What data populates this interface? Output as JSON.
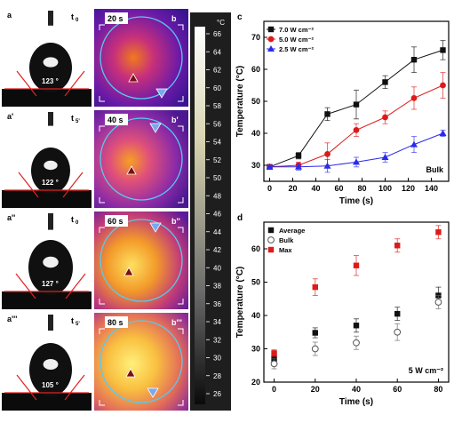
{
  "left_panels": [
    {
      "letter": "a",
      "time_label": "t",
      "time_sub": "0",
      "angle": "123 °",
      "ir_time": "20 s",
      "ir_letter": "b"
    },
    {
      "letter": "a'",
      "time_label": "t",
      "time_sub": "5'",
      "angle": "122 °",
      "ir_time": "40 s",
      "ir_letter": "b'"
    },
    {
      "letter": "a''",
      "time_label": "t",
      "time_sub": "0",
      "angle": "127 °",
      "ir_time": "60 s",
      "ir_letter": "b''"
    },
    {
      "letter": "a'''",
      "time_label": "t",
      "time_sub": "5'",
      "angle": "105 °",
      "ir_time": "80 s",
      "ir_letter": "b'''"
    }
  ],
  "colorbar": {
    "unit": "°C",
    "ticks": [
      "66",
      "64",
      "62",
      "60",
      "58",
      "56",
      "54",
      "52",
      "50",
      "48",
      "46",
      "44",
      "42",
      "40",
      "38",
      "36",
      "34",
      "32",
      "30",
      "28",
      "26"
    ]
  },
  "chart_data": [
    {
      "panel_label": "c",
      "type": "line",
      "xlabel": "Time (s)",
      "ylabel": "Temperature (°C)",
      "xlim": [
        -5,
        155
      ],
      "ylim": [
        25,
        75
      ],
      "xticks": [
        "0",
        "20",
        "40",
        "60",
        "80",
        "100",
        "120",
        "140"
      ],
      "yticks": [
        "30",
        "40",
        "50",
        "60",
        "70"
      ],
      "annotation": "Bulk",
      "legend_position": "top-left",
      "series": [
        {
          "name": "7.0 W cm⁻²",
          "color": "#111111",
          "marker": "square",
          "x": [
            0,
            25,
            50,
            75,
            100,
            125,
            150
          ],
          "y": [
            29.5,
            33,
            46,
            49,
            56,
            63,
            66
          ],
          "err": [
            0.5,
            1,
            2,
            4.5,
            2,
            4,
            3
          ]
        },
        {
          "name": "5.0 W cm⁻²",
          "color": "#dd1a1a",
          "marker": "circle",
          "x": [
            0,
            25,
            50,
            75,
            100,
            125,
            150
          ],
          "y": [
            29.5,
            30,
            33.5,
            41,
            45,
            51,
            55
          ],
          "err": [
            0.5,
            1,
            3.5,
            2,
            2,
            3.5,
            4
          ]
        },
        {
          "name": "2.5 W cm⁻²",
          "color": "#2a2aee",
          "marker": "triangle",
          "x": [
            0,
            25,
            50,
            75,
            100,
            125,
            150
          ],
          "y": [
            29.5,
            29.5,
            29.8,
            31,
            32.5,
            36.5,
            40
          ],
          "err": [
            0.5,
            1,
            2,
            1.5,
            1.5,
            2.5,
            1
          ]
        }
      ]
    },
    {
      "panel_label": "d",
      "type": "scatter",
      "xlabel": "Time (s)",
      "ylabel": "Temperature (°C)",
      "xlim": [
        -5,
        85
      ],
      "ylim": [
        20,
        68
      ],
      "xticks": [
        "0",
        "20",
        "40",
        "60",
        "80"
      ],
      "yticks": [
        "20",
        "30",
        "40",
        "50",
        "60"
      ],
      "annotation": "5 W cm⁻²",
      "legend_position": "top-left",
      "series": [
        {
          "name": "Average",
          "color": "#111111",
          "marker": "square",
          "x": [
            0,
            20,
            40,
            60,
            80
          ],
          "y": [
            27,
            34.8,
            37,
            40.5,
            46
          ],
          "err": [
            1.5,
            1.5,
            2,
            2,
            2.5
          ]
        },
        {
          "name": "Bulk",
          "color": "#555555",
          "marker": "open-circle",
          "x": [
            0,
            20,
            40,
            60,
            80
          ],
          "y": [
            25.5,
            30,
            31.8,
            35,
            44
          ],
          "err": [
            1.5,
            2,
            2,
            2.5,
            2
          ]
        },
        {
          "name": "Max",
          "color": "#dd1a1a",
          "marker": "square",
          "x": [
            0,
            20,
            40,
            60,
            80
          ],
          "y": [
            28.7,
            48.5,
            55,
            61,
            65
          ],
          "err": [
            1,
            2.5,
            3,
            2,
            2
          ]
        }
      ]
    }
  ]
}
